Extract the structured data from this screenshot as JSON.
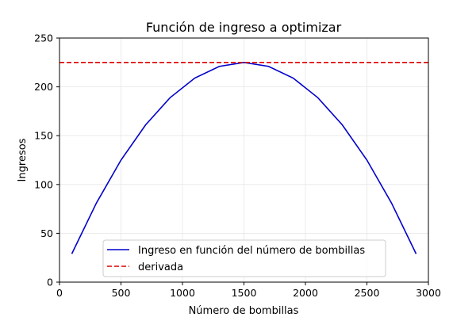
{
  "chart_data": {
    "type": "line",
    "title": "Función de ingreso a optimizar",
    "xlabel": "Número de bombillas",
    "ylabel": "Ingresos",
    "xlim": [
      0,
      3000
    ],
    "ylim": [
      0,
      250
    ],
    "xticks": [
      0,
      500,
      1000,
      1500,
      2000,
      2500,
      3000
    ],
    "yticks": [
      0,
      50,
      100,
      150,
      200,
      250
    ],
    "grid": true,
    "legend_position": "lower-center",
    "series": [
      {
        "name": "Ingreso en función del número de bombillas",
        "color": "#0000cc",
        "style": "solid",
        "x": [
          100,
          300,
          500,
          700,
          900,
          1100,
          1300,
          1500,
          1700,
          1900,
          2100,
          2300,
          2500,
          2700,
          2900
        ],
        "y": [
          29,
          81,
          125,
          161,
          189,
          209,
          221,
          225,
          221,
          209,
          189,
          161,
          125,
          81,
          29
        ]
      },
      {
        "name": "derivada",
        "color": "#e00000",
        "style": "dashed",
        "x": [
          0,
          3000
        ],
        "y": [
          225,
          225
        ]
      }
    ]
  }
}
